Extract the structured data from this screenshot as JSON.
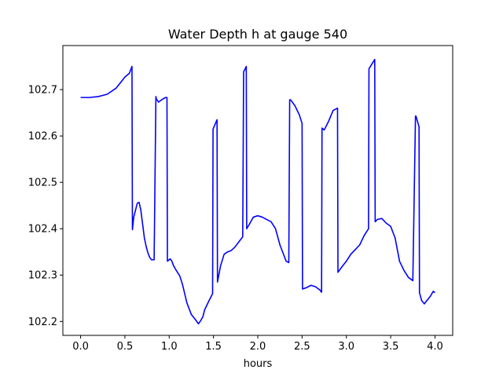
{
  "chart_data": {
    "type": "line",
    "title": "Water Depth h at gauge 540",
    "xlabel": "hours",
    "ylabel": "",
    "xlim": [
      -0.2,
      4.2
    ],
    "ylim": [
      102.17,
      102.795
    ],
    "grid": false,
    "xticks": [
      0.0,
      0.5,
      1.0,
      1.5,
      2.0,
      2.5,
      3.0,
      3.5,
      4.0
    ],
    "xtick_labels": [
      "0.0",
      "0.5",
      "1.0",
      "1.5",
      "2.0",
      "2.5",
      "3.0",
      "3.5",
      "4.0"
    ],
    "yticks": [
      102.2,
      102.3,
      102.4,
      102.5,
      102.6,
      102.7
    ],
    "ytick_labels": [
      "102.2",
      "102.3",
      "102.4",
      "102.5",
      "102.6",
      "102.7"
    ],
    "series": [
      {
        "color": "#0000ff",
        "x": [
          0.0,
          0.1,
          0.2,
          0.3,
          0.4,
          0.45,
          0.5,
          0.55,
          0.58,
          0.585,
          0.6,
          0.64,
          0.66,
          0.68,
          0.7,
          0.72,
          0.74,
          0.76,
          0.78,
          0.8,
          0.83,
          0.85,
          0.855,
          0.88,
          0.9,
          0.93,
          0.96,
          0.975,
          0.98,
          1.0,
          1.01,
          1.02,
          1.03,
          1.05,
          1.08,
          1.12,
          1.15,
          1.2,
          1.25,
          1.3,
          1.33,
          1.35,
          1.38,
          1.4,
          1.45,
          1.49,
          1.495,
          1.54,
          1.545,
          1.58,
          1.62,
          1.66,
          1.7,
          1.74,
          1.78,
          1.82,
          1.83,
          1.84,
          1.845,
          1.87,
          1.875,
          1.9,
          1.95,
          2.0,
          2.05,
          2.1,
          2.15,
          2.2,
          2.25,
          2.3,
          2.32,
          2.35,
          2.36,
          2.37,
          2.42,
          2.47,
          2.5,
          2.505,
          2.55,
          2.6,
          2.65,
          2.7,
          2.72,
          2.725,
          2.75,
          2.8,
          2.85,
          2.9,
          2.905,
          2.95,
          3.0,
          3.05,
          3.1,
          3.15,
          3.2,
          3.25,
          3.255,
          3.32,
          3.325,
          3.35,
          3.4,
          3.45,
          3.5,
          3.55,
          3.6,
          3.65,
          3.7,
          3.75,
          3.78,
          3.785,
          3.82,
          3.825,
          3.85,
          3.88,
          3.9,
          3.95,
          3.98,
          4.0
        ],
        "values": [
          102.683,
          102.683,
          102.685,
          102.69,
          102.703,
          102.715,
          102.727,
          102.735,
          102.75,
          102.398,
          102.425,
          102.455,
          102.457,
          102.44,
          102.41,
          102.38,
          102.362,
          102.348,
          102.338,
          102.333,
          102.333,
          102.685,
          102.68,
          102.673,
          102.676,
          102.68,
          102.683,
          102.683,
          102.33,
          102.333,
          102.335,
          102.333,
          102.33,
          102.32,
          102.31,
          102.298,
          102.28,
          102.24,
          102.215,
          102.203,
          102.195,
          102.2,
          102.21,
          102.225,
          102.245,
          102.26,
          102.615,
          102.635,
          102.285,
          102.32,
          102.345,
          102.35,
          102.353,
          102.36,
          102.37,
          102.38,
          102.383,
          102.738,
          102.74,
          102.75,
          102.4,
          102.408,
          102.425,
          102.428,
          102.425,
          102.42,
          102.415,
          102.4,
          102.365,
          102.34,
          102.33,
          102.327,
          102.678,
          102.678,
          102.665,
          102.645,
          102.627,
          102.27,
          102.273,
          102.278,
          102.275,
          102.268,
          102.263,
          102.617,
          102.613,
          102.632,
          102.655,
          102.66,
          102.306,
          102.318,
          102.33,
          102.345,
          102.355,
          102.365,
          102.385,
          102.4,
          102.745,
          102.765,
          102.415,
          102.42,
          102.422,
          102.412,
          102.405,
          102.38,
          102.33,
          102.31,
          102.295,
          102.288,
          102.643,
          102.643,
          102.62,
          102.262,
          102.245,
          102.238,
          102.243,
          102.255,
          102.265,
          102.262
        ]
      }
    ]
  }
}
